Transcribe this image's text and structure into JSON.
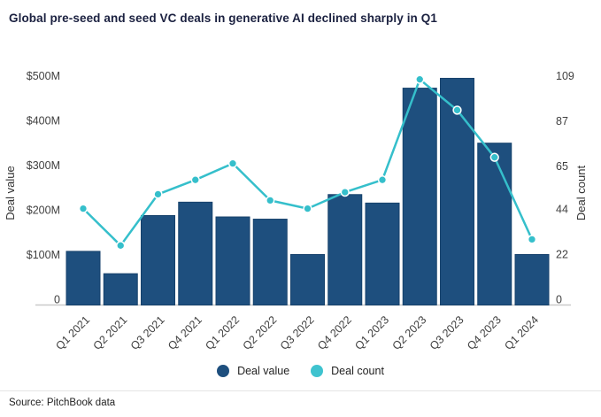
{
  "title": "Global pre-seed and seed VC deals in generative AI declined sharply in Q1",
  "source": "Source: PitchBook data",
  "legend": [
    {
      "label": "Deal value",
      "color": "#1e4f7e"
    },
    {
      "label": "Deal count",
      "color": "#3fc3cf"
    }
  ],
  "colors": {
    "bar": "#1e4f7e",
    "bar_edge": "#17426c",
    "line": "#35bfcb",
    "marker_ring": "#ffffff",
    "axis_line": "#c9c9c9",
    "title_text": "#1b2140",
    "tick_text": "#404040",
    "axis_title_text": "#333333",
    "divider": "#e5e5e5",
    "source_text": "#222222"
  },
  "chart_data": {
    "type": "bar+line combo",
    "title": "Global pre-seed and seed VC deals in generative AI declined sharply in Q1",
    "categories": [
      "Q1 2021",
      "Q2 2021",
      "Q3 2021",
      "Q4 2021",
      "Q1 2022",
      "Q2 2022",
      "Q3 2022",
      "Q4 2022",
      "Q1 2023",
      "Q2 2023",
      "Q3 2023",
      "Q4 2023",
      "Q1 2024"
    ],
    "series": [
      {
        "name": "Deal value",
        "type": "bar",
        "axis": "left",
        "unit": "USD millions",
        "values": [
          120,
          70,
          200,
          230,
          197,
          192,
          113,
          247,
          228,
          485,
          507,
          362,
          113
        ]
      },
      {
        "name": "Deal count",
        "type": "line",
        "axis": "right",
        "unit": "deals",
        "values": [
          47,
          29,
          54,
          61,
          69,
          51,
          47,
          55,
          61,
          110,
          95,
          72,
          32
        ]
      }
    ],
    "left_axis": {
      "title": "Deal value",
      "tick_labels": [
        "$500M",
        "$400M",
        "$300M",
        "$200M",
        "$100M",
        "0"
      ],
      "tick_values": [
        500,
        400,
        300,
        200,
        100,
        0
      ],
      "range": [
        0,
        500
      ]
    },
    "right_axis": {
      "title": "Deal count",
      "tick_labels": [
        "109",
        "87",
        "65",
        "44",
        "22",
        "0"
      ],
      "tick_values": [
        109,
        87,
        65,
        44,
        22,
        0
      ],
      "range": [
        0,
        109
      ]
    },
    "x_axis": {
      "tick_rotation_deg": -45
    },
    "legend_position": "bottom-center",
    "grid": false
  }
}
